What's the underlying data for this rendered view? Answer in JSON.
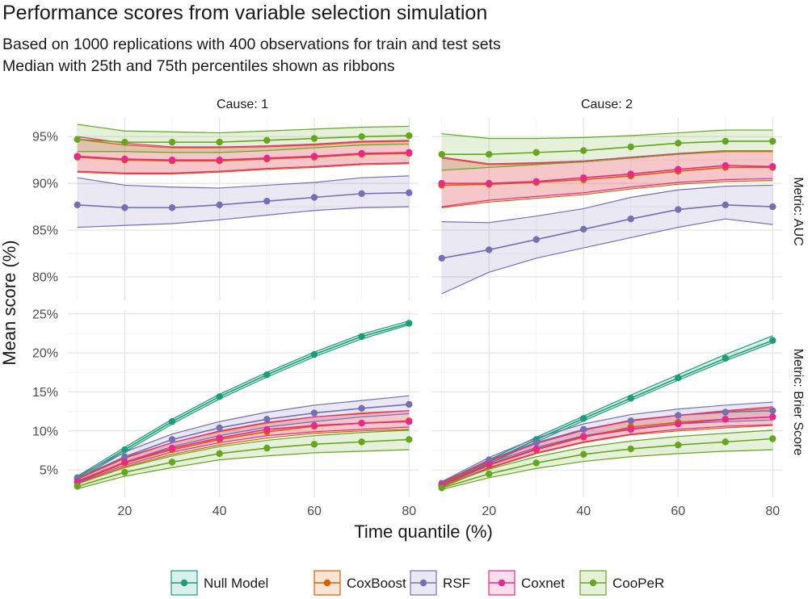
{
  "header": {
    "title": "Performance scores from variable selection simulation",
    "subtitle_line1": "Based on 1000 replications with 400 observations for train and test sets",
    "subtitle_line2": "Median with 25th and 75th percentiles shown as ribbons"
  },
  "chart_data": {
    "type": "line",
    "title": "Performance scores from variable selection simulation",
    "xlabel": "Time quantile (%)",
    "ylabel": "Mean score (%)",
    "x": [
      10,
      20,
      30,
      40,
      50,
      60,
      70,
      80
    ],
    "x_ticks": [
      20,
      40,
      60,
      80
    ],
    "x_tick_labels": [
      "20",
      "40",
      "60",
      "80"
    ],
    "xlim": [
      8,
      82
    ],
    "legend_position": "bottom",
    "grid": true,
    "columns": [
      "Cause: 1",
      "Cause: 2"
    ],
    "rows": [
      "Metric: AUC",
      "Metric: Brier Score"
    ],
    "row_axes": [
      {
        "ylim": [
          77.5,
          97.0
        ],
        "ticks": [
          80,
          85,
          90,
          95
        ],
        "tick_labels": [
          "80%",
          "85%",
          "90%",
          "95%"
        ]
      },
      {
        "ylim": [
          1.5,
          25.5
        ],
        "ticks": [
          5,
          10,
          15,
          20,
          25
        ],
        "tick_labels": [
          "5%",
          "10%",
          "15%",
          "20%",
          "25%"
        ]
      }
    ],
    "models": [
      {
        "name": "Null Model",
        "color": "#1b9e77"
      },
      {
        "name": "CoxBoost",
        "color": "#d95f02"
      },
      {
        "name": "RSF",
        "color": "#7570b3"
      },
      {
        "name": "Coxnet",
        "color": "#e7298a"
      },
      {
        "name": "CooPeR",
        "color": "#66a61e"
      }
    ],
    "panels": [
      {
        "row": 0,
        "col": 0,
        "series": [
          {
            "name": "RSF",
            "median": [
              87.7,
              87.4,
              87.4,
              87.7,
              88.1,
              88.5,
              88.9,
              89.0
            ],
            "lower": [
              85.3,
              85.5,
              85.7,
              86.1,
              86.6,
              87.1,
              87.4,
              87.5
            ],
            "upper": [
              90.6,
              89.8,
              89.6,
              89.5,
              89.8,
              90.1,
              90.6,
              90.8
            ]
          },
          {
            "name": "CoxBoost",
            "median": [
              92.8,
              92.5,
              92.4,
              92.4,
              92.6,
              92.8,
              93.1,
              93.2
            ],
            "lower": [
              91.2,
              91.0,
              91.0,
              91.2,
              91.5,
              91.7,
              92.0,
              92.1
            ],
            "upper": [
              94.7,
              94.1,
              93.8,
              93.8,
              93.9,
              94.1,
              94.4,
              94.5
            ]
          },
          {
            "name": "Coxnet",
            "median": [
              92.9,
              92.6,
              92.5,
              92.5,
              92.7,
              92.9,
              93.2,
              93.3
            ],
            "lower": [
              91.3,
              91.1,
              91.1,
              91.3,
              91.6,
              91.8,
              92.1,
              92.2
            ],
            "upper": [
              95.0,
              94.3,
              93.9,
              93.9,
              94.0,
              94.2,
              94.5,
              94.6
            ]
          },
          {
            "name": "CooPeR",
            "median": [
              94.7,
              94.4,
              94.4,
              94.4,
              94.6,
              94.8,
              95.0,
              95.1
            ],
            "lower": [
              93.4,
              93.4,
              93.3,
              93.3,
              93.5,
              93.8,
              94.1,
              94.2
            ],
            "upper": [
              96.3,
              95.6,
              95.5,
              95.4,
              95.6,
              95.8,
              96.0,
              96.1
            ]
          }
        ]
      },
      {
        "row": 0,
        "col": 1,
        "series": [
          {
            "name": "RSF",
            "median": [
              82.0,
              82.9,
              84.0,
              85.1,
              86.2,
              87.2,
              87.7,
              87.5
            ],
            "lower": [
              78.2,
              80.5,
              82.0,
              83.1,
              84.2,
              85.3,
              86.2,
              85.6
            ],
            "upper": [
              85.9,
              85.8,
              86.5,
              87.3,
              88.5,
              89.3,
              89.7,
              89.8
            ]
          },
          {
            "name": "CoxBoost",
            "median": [
              89.8,
              89.9,
              90.1,
              90.4,
              90.8,
              91.3,
              91.7,
              91.7
            ],
            "lower": [
              87.4,
              88.0,
              88.4,
              88.8,
              89.4,
              89.9,
              90.2,
              90.3
            ],
            "upper": [
              92.7,
              92.0,
              92.1,
              92.3,
              92.7,
              93.1,
              93.4,
              93.4
            ]
          },
          {
            "name": "Coxnet",
            "median": [
              90.0,
              90.0,
              90.2,
              90.6,
              91.0,
              91.5,
              91.9,
              91.8
            ],
            "lower": [
              87.5,
              88.2,
              88.6,
              89.0,
              89.6,
              90.1,
              90.4,
              90.5
            ],
            "upper": [
              92.8,
              92.1,
              92.2,
              92.4,
              92.8,
              93.2,
              93.5,
              93.5
            ]
          },
          {
            "name": "CooPeR",
            "median": [
              93.1,
              93.1,
              93.3,
              93.5,
              93.9,
              94.3,
              94.5,
              94.5
            ],
            "lower": [
              91.4,
              91.7,
              92.0,
              92.3,
              92.7,
              93.1,
              93.5,
              93.5
            ],
            "upper": [
              95.3,
              94.8,
              94.8,
              94.9,
              95.1,
              95.4,
              95.7,
              95.7
            ]
          }
        ]
      },
      {
        "row": 1,
        "col": 0,
        "series": [
          {
            "name": "Null Model",
            "median": [
              4.0,
              7.6,
              11.2,
              14.4,
              17.2,
              19.8,
              22.1,
              23.8
            ],
            "lower": [
              3.8,
              7.3,
              10.9,
              14.1,
              16.9,
              19.5,
              21.8,
              23.6
            ],
            "upper": [
              4.2,
              7.9,
              11.5,
              14.7,
              17.5,
              20.1,
              22.4,
              24.1
            ]
          },
          {
            "name": "RSF",
            "median": [
              3.9,
              6.7,
              8.9,
              10.4,
              11.5,
              12.3,
              12.9,
              13.4
            ],
            "lower": [
              3.6,
              6.0,
              8.0,
              9.4,
              10.5,
              11.2,
              11.8,
              12.2
            ],
            "upper": [
              4.2,
              7.3,
              9.6,
              11.2,
              12.4,
              13.3,
              13.9,
              14.5
            ]
          },
          {
            "name": "CoxBoost",
            "median": [
              3.4,
              5.9,
              7.6,
              8.9,
              9.9,
              10.6,
              11.0,
              11.3
            ],
            "lower": [
              3.2,
              5.4,
              7.0,
              8.2,
              9.1,
              9.7,
              10.0,
              10.2
            ],
            "upper": [
              3.8,
              6.5,
              8.5,
              9.9,
              11.0,
              11.8,
              12.3,
              12.6
            ]
          },
          {
            "name": "Coxnet",
            "median": [
              3.5,
              6.0,
              7.8,
              9.1,
              10.2,
              10.7,
              11.0,
              11.2
            ],
            "lower": [
              3.3,
              5.6,
              7.3,
              8.5,
              9.4,
              9.9,
              10.2,
              10.5
            ],
            "upper": [
              3.9,
              6.6,
              8.5,
              10.0,
              11.1,
              11.8,
              12.2,
              12.6
            ]
          },
          {
            "name": "CooPeR",
            "median": [
              2.9,
              4.7,
              6.0,
              7.1,
              7.8,
              8.3,
              8.6,
              8.9
            ],
            "lower": [
              2.6,
              4.2,
              5.3,
              6.3,
              6.8,
              7.2,
              7.4,
              7.6
            ],
            "upper": [
              3.2,
              5.3,
              6.8,
              8.0,
              8.8,
              9.4,
              9.8,
              10.1
            ]
          }
        ]
      },
      {
        "row": 1,
        "col": 1,
        "series": [
          {
            "name": "Null Model",
            "median": [
              3.2,
              6.0,
              8.9,
              11.6,
              14.2,
              16.8,
              19.3,
              21.6
            ],
            "lower": [
              3.0,
              5.8,
              8.6,
              11.3,
              13.9,
              16.5,
              19.0,
              21.3
            ],
            "upper": [
              3.4,
              6.3,
              9.2,
              11.9,
              14.6,
              17.2,
              19.8,
              22.2
            ]
          },
          {
            "name": "RSF",
            "median": [
              3.3,
              6.3,
              8.5,
              10.2,
              11.3,
              12.0,
              12.4,
              12.6
            ],
            "lower": [
              3.1,
              5.9,
              7.9,
              9.4,
              10.3,
              10.9,
              11.2,
              11.4
            ],
            "upper": [
              3.5,
              6.6,
              9.1,
              10.9,
              12.1,
              12.8,
              13.3,
              13.7
            ]
          },
          {
            "name": "CoxBoost",
            "median": [
              3.0,
              5.6,
              7.6,
              9.2,
              10.5,
              11.1,
              11.5,
              11.8
            ],
            "lower": [
              2.8,
              5.2,
              7.1,
              8.5,
              9.5,
              10.0,
              10.4,
              10.7
            ],
            "upper": [
              3.3,
              6.1,
              8.4,
              10.1,
              11.4,
              12.0,
              12.5,
              12.9
            ]
          },
          {
            "name": "Coxnet",
            "median": [
              3.1,
              5.7,
              7.7,
              9.3,
              10.2,
              10.9,
              11.5,
              11.8
            ],
            "lower": [
              2.9,
              5.3,
              7.2,
              8.6,
              9.6,
              10.2,
              10.6,
              10.8
            ],
            "upper": [
              3.4,
              6.2,
              8.4,
              10.1,
              11.3,
              12.0,
              12.6,
              13.1
            ]
          },
          {
            "name": "CooPeR",
            "median": [
              2.7,
              4.5,
              5.9,
              7.0,
              7.7,
              8.2,
              8.6,
              9.0
            ],
            "lower": [
              2.5,
              4.0,
              5.2,
              6.1,
              6.7,
              7.1,
              7.4,
              7.6
            ],
            "upper": [
              3.0,
              5.1,
              6.7,
              7.9,
              8.7,
              9.3,
              9.7,
              10.1
            ]
          }
        ]
      }
    ]
  }
}
